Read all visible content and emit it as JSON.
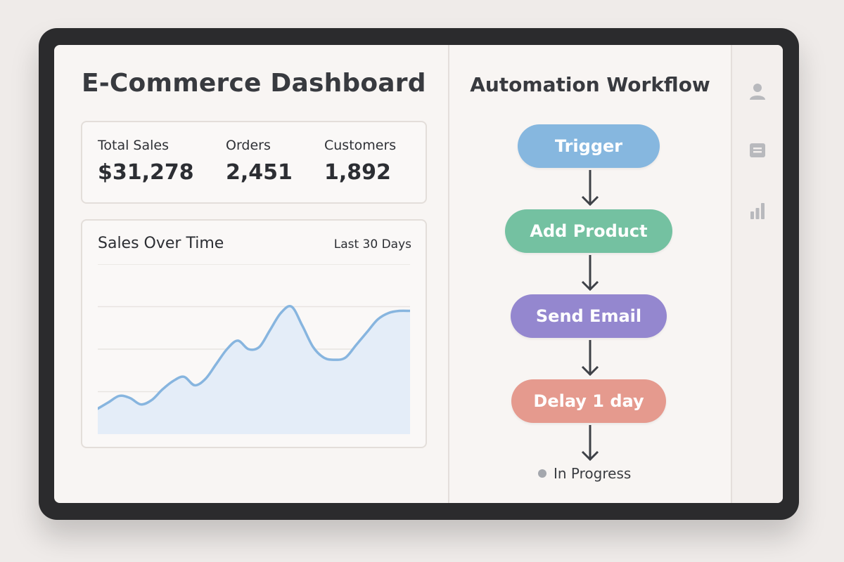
{
  "dashboard": {
    "title": "E-Commerce Dashboard",
    "stats": [
      {
        "label": "Total Sales",
        "value": "$31,278"
      },
      {
        "label": "Orders",
        "value": "2,451"
      },
      {
        "label": "Customers",
        "value": "1,892"
      }
    ]
  },
  "chart": {
    "title": "Sales Over Time",
    "range_label": "Last 30 Days"
  },
  "chart_data": {
    "type": "area",
    "title": "Sales Over Time",
    "xlabel": "",
    "ylabel": "",
    "grid": true,
    "x": [
      0,
      1,
      2,
      3,
      4,
      5,
      6,
      7,
      8,
      9,
      10,
      11,
      12,
      13,
      14,
      15,
      16,
      17,
      18,
      19,
      20,
      21,
      22,
      23,
      24,
      25,
      26,
      27,
      28,
      29
    ],
    "values": [
      12,
      15,
      18,
      17,
      14,
      16,
      21,
      25,
      27,
      23,
      26,
      33,
      40,
      44,
      40,
      41,
      49,
      57,
      60,
      51,
      41,
      36,
      35,
      36,
      42,
      48,
      54,
      57,
      58,
      58
    ],
    "ylim": [
      0,
      80
    ],
    "color": "#87b5df",
    "fill_color": "#e4edf8"
  },
  "workflow": {
    "title": "Automation Workflow",
    "steps": [
      {
        "label": "Trigger",
        "color": "#86b7df"
      },
      {
        "label": "Add Product",
        "color": "#74c1a1"
      },
      {
        "label": "Send Email",
        "color": "#9487cf"
      },
      {
        "label": "Delay 1 day",
        "color": "#e59a8e"
      }
    ],
    "status": "In Progress",
    "status_color": "#a4a7ad"
  },
  "rail": {
    "icons": [
      "user-icon",
      "document-icon",
      "bar-chart-icon"
    ],
    "icon_color": "#b8b9bd"
  }
}
